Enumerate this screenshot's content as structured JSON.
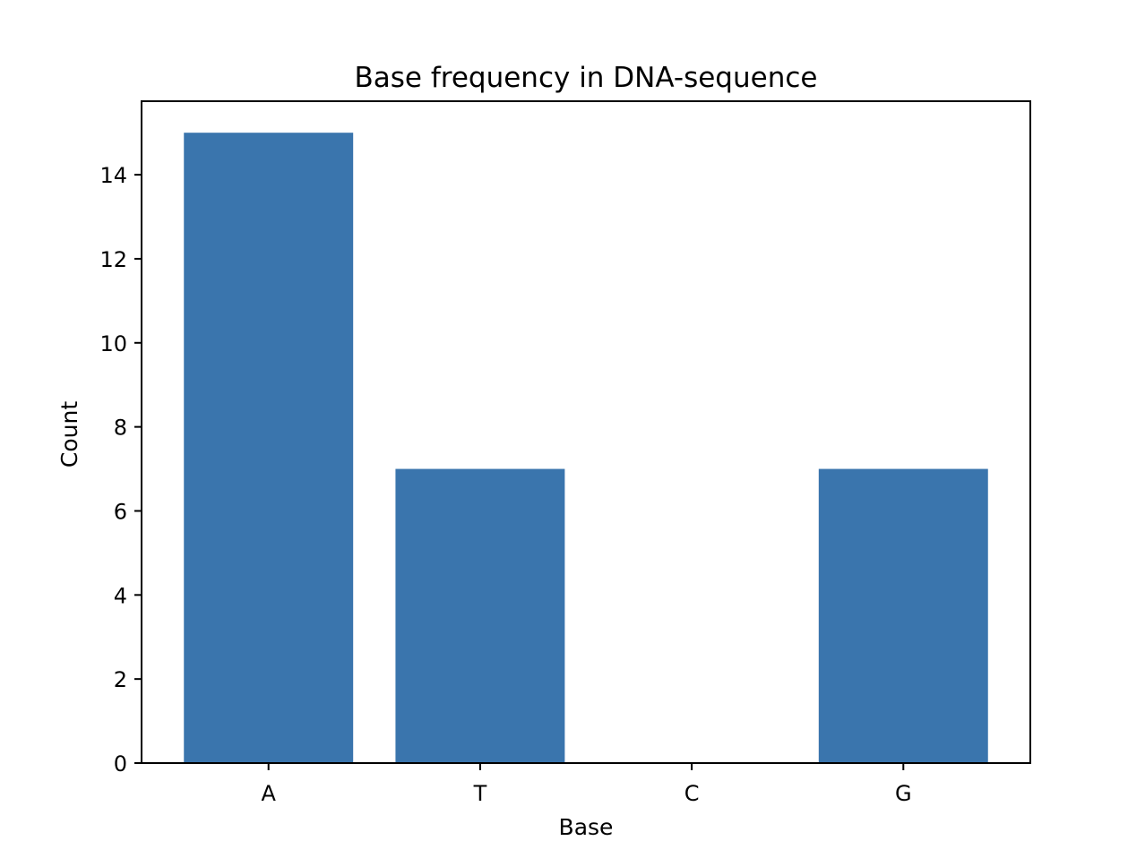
{
  "chart_data": {
    "type": "bar",
    "title": "Base frequency in DNA-sequence",
    "xlabel": "Base",
    "ylabel": "Count",
    "categories": [
      "A",
      "T",
      "C",
      "G"
    ],
    "values": [
      15,
      7,
      0,
      7
    ],
    "ylim": [
      0,
      15.75
    ],
    "yticks": [
      0,
      2,
      4,
      6,
      8,
      10,
      12,
      14
    ],
    "grid": false,
    "legend": "none",
    "bar_color": "#3a75ad"
  }
}
